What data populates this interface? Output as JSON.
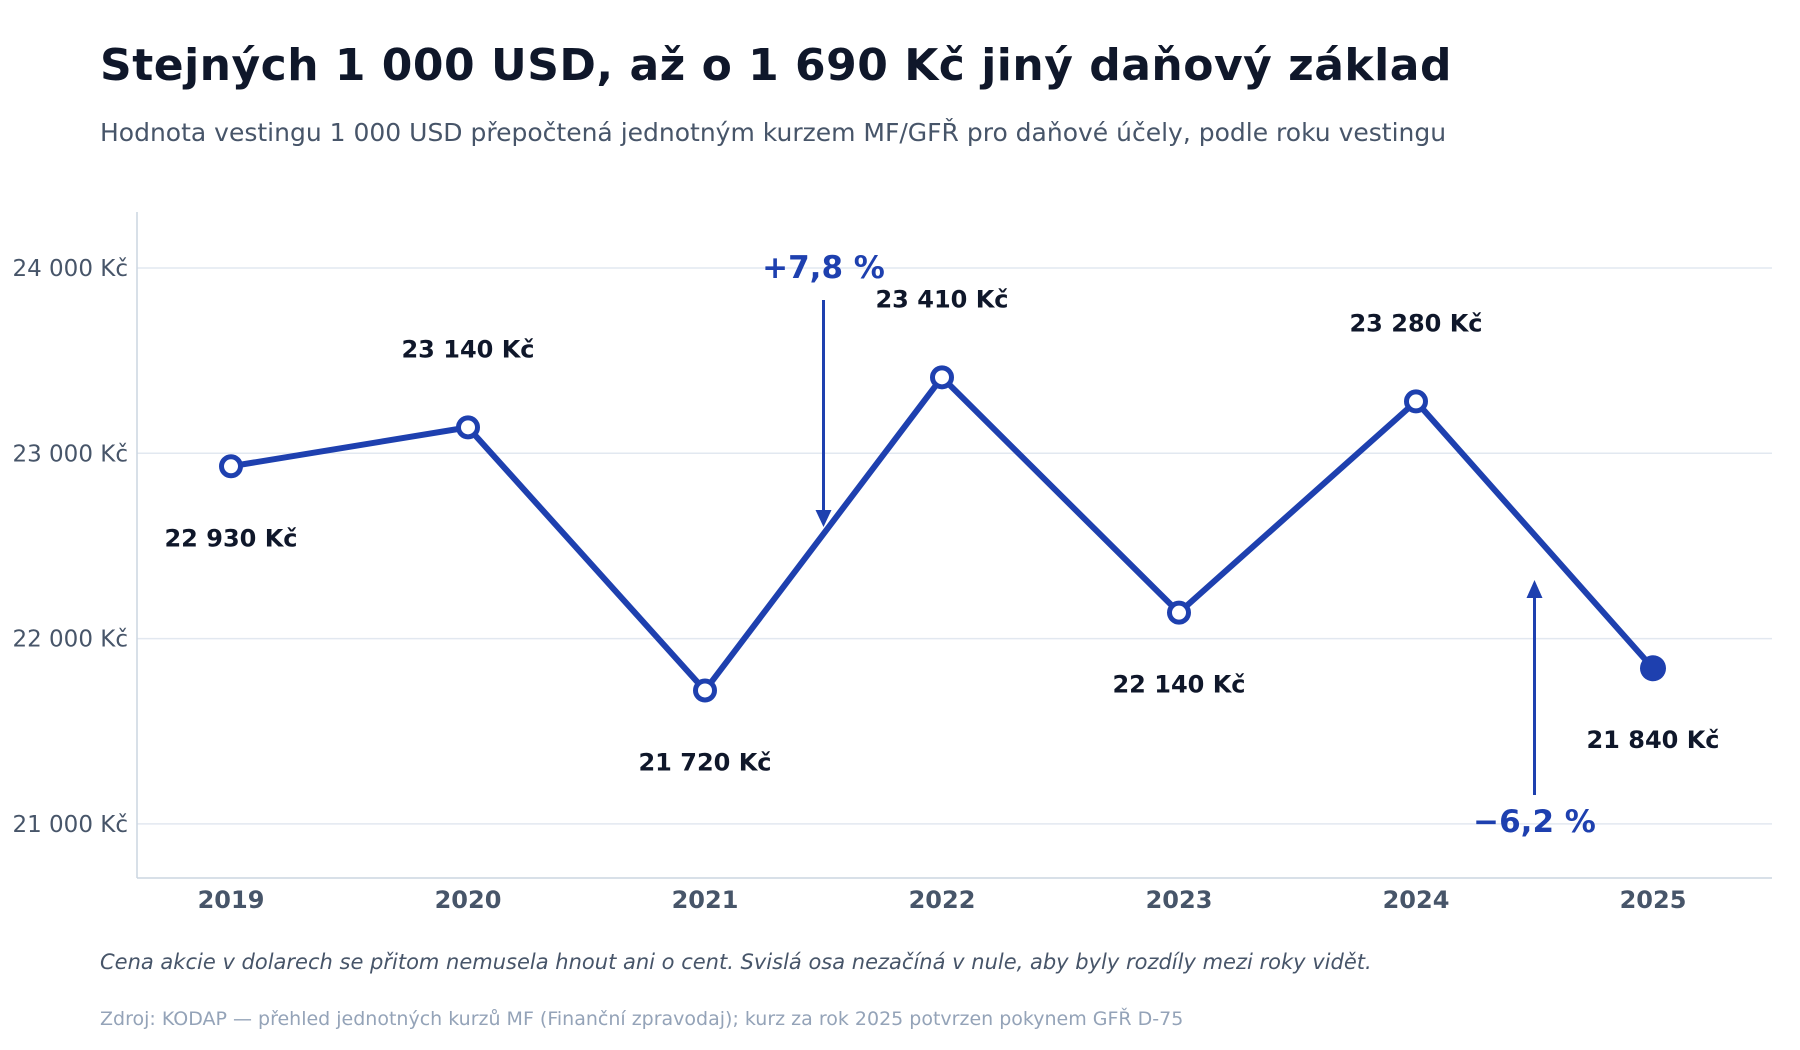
{
  "title": "Stejných 1 000 USD, až o 1 690 Kč jiný daňový základ",
  "subtitle": "Hodnota vestingu 1 000 USD přepočtená jednotným kurzem MF/GFŘ pro daňové účely, podle roku vestingu",
  "footnote": "Cena akcie v dolarech se přitom nemusela hnout ani o cent. Svislá osa nezačíná v nule, aby byly rozdíly mezi roky vidět.",
  "source": "Zdroj: KODAP — přehled jednotných kurzů MF (Finanční zpravodaj); kurz za rok 2025 potvrzen pokynem GFŘ D-75",
  "colors": {
    "line": "#1e40af",
    "grid": "#e2e8f0",
    "axis": "#cbd5e1",
    "text_dark": "#0f172a",
    "text_muted": "#475569",
    "background": "#ffffff"
  },
  "chart_data": {
    "type": "line",
    "x": [
      "2019",
      "2020",
      "2021",
      "2022",
      "2023",
      "2024",
      "2025"
    ],
    "values": [
      22930,
      23140,
      21720,
      23410,
      22140,
      23280,
      21840
    ],
    "data_labels": [
      "22 930 Kč",
      "23 140 Kč",
      "21 720 Kč",
      "23 410 Kč",
      "22 140 Kč",
      "23 280 Kč",
      "21 840 Kč"
    ],
    "label_placement": [
      "below",
      "above",
      "below",
      "above",
      "below",
      "above",
      "below"
    ],
    "last_point_filled": true,
    "yticks": [
      21000,
      22000,
      23000,
      24000
    ],
    "ytick_labels": [
      "21 000 Kč",
      "22 000 Kč",
      "23 000 Kč",
      "24 000 Kč"
    ],
    "ylim": [
      20800,
      24400
    ],
    "grid": "horizontal",
    "annotations": [
      {
        "text": "+7,8 %",
        "between": [
          "2021",
          "2022"
        ],
        "direction": "down"
      },
      {
        "text": "−6,2 %",
        "between": [
          "2024",
          "2025"
        ],
        "direction": "up"
      }
    ]
  }
}
